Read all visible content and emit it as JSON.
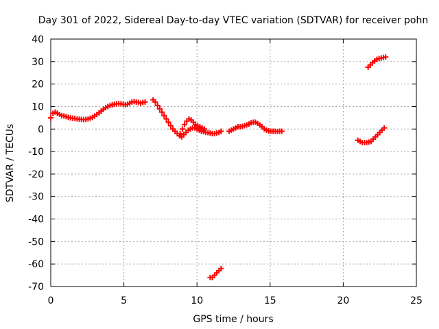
{
  "chart_data": {
    "type": "scatter",
    "title": "Day 301 of 2022, Sidereal Day-to-day VTEC variation (SDTVAR) for receiver pohn",
    "xlabel": "GPS time / hours",
    "ylabel": "SDTVAR / TECUs",
    "xlim": [
      0,
      25
    ],
    "ylim": [
      -70,
      40
    ],
    "xticks": [
      0,
      5,
      10,
      15,
      20,
      25
    ],
    "yticks": [
      -70,
      -60,
      -50,
      -40,
      -30,
      -20,
      -10,
      0,
      10,
      20,
      30,
      40
    ],
    "grid": true,
    "marker_color": "#ff0000",
    "series": [
      {
        "name": "SDTVAR",
        "x": [
          0.0,
          0.15,
          0.3,
          0.45,
          0.6,
          0.75,
          0.9,
          1.05,
          1.2,
          1.35,
          1.5,
          1.65,
          1.8,
          1.95,
          2.1,
          2.25,
          2.4,
          2.55,
          2.7,
          2.85,
          3.0,
          3.15,
          3.3,
          3.45,
          3.6,
          3.75,
          3.9,
          4.05,
          4.2,
          4.35,
          4.5,
          4.65,
          4.8,
          4.95,
          5.1,
          5.25,
          5.4,
          5.55,
          5.7,
          5.85,
          6.0,
          6.15,
          6.3,
          6.45,
          7.0,
          7.15,
          7.3,
          7.45,
          7.6,
          7.75,
          7.9,
          8.05,
          8.2,
          8.35,
          8.5,
          8.65,
          8.8,
          8.95,
          9.1,
          9.25,
          9.4,
          9.55,
          9.7,
          9.85,
          10.0,
          10.15,
          10.3,
          10.45,
          10.6,
          10.75,
          10.9,
          11.05,
          11.2,
          11.35,
          11.5,
          11.65,
          8.85,
          9.0,
          9.15,
          9.3,
          9.45,
          9.6,
          9.75,
          9.9,
          10.05,
          10.2,
          10.35,
          10.5,
          10.9,
          11.05,
          11.2,
          11.35,
          11.5,
          11.65,
          12.2,
          12.35,
          12.5,
          12.65,
          12.8,
          12.95,
          13.1,
          13.25,
          13.4,
          13.55,
          13.7,
          13.85,
          14.0,
          14.15,
          14.3,
          14.45,
          14.6,
          14.75,
          14.9,
          15.05,
          15.2,
          15.35,
          15.5,
          15.65,
          15.8,
          21.0,
          21.15,
          21.3,
          21.45,
          21.6,
          21.75,
          21.9,
          22.05,
          22.2,
          22.35,
          22.5,
          22.65,
          22.8,
          21.7,
          21.85,
          22.0,
          22.15,
          22.3,
          22.45,
          22.6,
          22.75,
          22.9
        ],
        "y": [
          5,
          7,
          7.5,
          7,
          6.5,
          6,
          5.8,
          5.5,
          5.2,
          5,
          4.8,
          4.7,
          4.5,
          4.4,
          4.3,
          4.2,
          4.3,
          4.5,
          4.8,
          5.2,
          5.8,
          6.5,
          7.2,
          8,
          8.8,
          9.5,
          10,
          10.5,
          10.8,
          11,
          11.2,
          11.3,
          11.2,
          11,
          10.8,
          11,
          11.5,
          12,
          12.2,
          12,
          11.8,
          11.5,
          11.8,
          12,
          13,
          12,
          10.5,
          9,
          7.5,
          6,
          4.5,
          3,
          1.5,
          0,
          -1,
          -2,
          -3,
          -3.5,
          -2.5,
          -1.5,
          -0.5,
          0,
          0.5,
          0.5,
          0,
          -0.5,
          -1,
          -1.2,
          -1.5,
          -1.6,
          -1.8,
          -2,
          -2,
          -1.8,
          -1.5,
          -1,
          -2,
          0,
          2,
          3.5,
          4.5,
          4,
          3,
          2,
          1.5,
          1,
          0.5,
          0,
          -66,
          -66,
          -65,
          -64,
          -63,
          -62,
          -1,
          -0.5,
          0,
          0.5,
          1,
          1,
          1.2,
          1.5,
          1.8,
          2.2,
          2.8,
          3,
          3,
          2.5,
          1.8,
          1,
          0,
          -0.5,
          -0.8,
          -1,
          -1,
          -1,
          -1.1,
          -1,
          -1,
          -5,
          -5.5,
          -6,
          -6,
          -6,
          -5.8,
          -5.5,
          -4.5,
          -3.5,
          -2.5,
          -1.5,
          -0.5,
          0.5,
          27.5,
          28.5,
          29.5,
          30.3,
          31,
          31.3,
          31.6,
          31.8,
          32
        ]
      }
    ]
  }
}
